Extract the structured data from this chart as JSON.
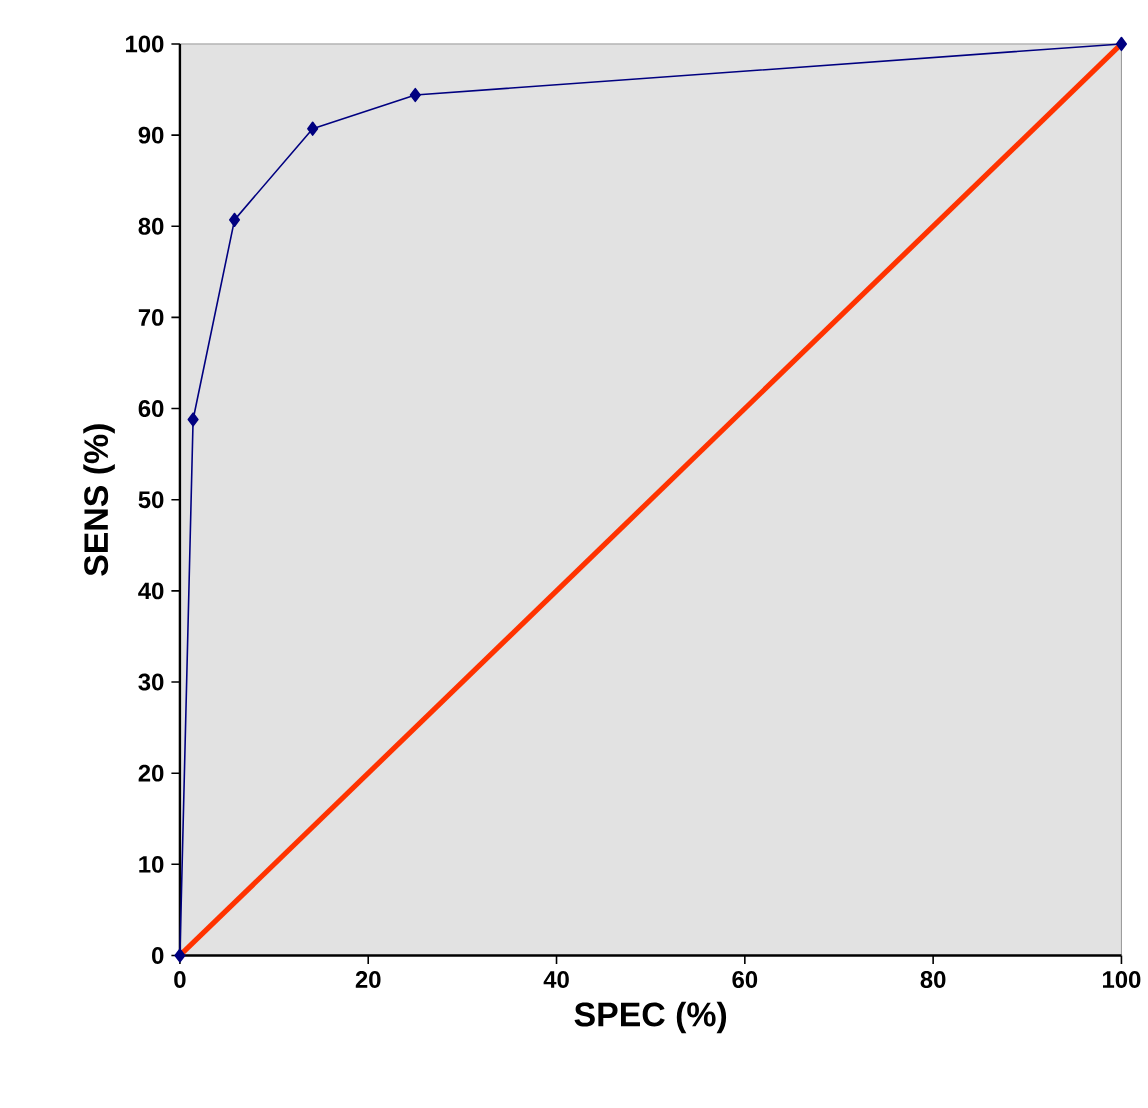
{
  "chart_data": {
    "type": "line",
    "xlabel": "SPEC (%)",
    "ylabel": "SENS (%)",
    "xlim": [
      0,
      100
    ],
    "ylim": [
      0,
      100
    ],
    "xticks": [
      0,
      20,
      40,
      60,
      80,
      100
    ],
    "yticks": [
      0,
      10,
      20,
      30,
      40,
      50,
      60,
      70,
      80,
      90,
      100
    ],
    "grid": false,
    "series": [
      {
        "color": "#000080",
        "marker": "diamond",
        "x": [
          0,
          1.4,
          5.8,
          14.1,
          25,
          100
        ],
        "values": [
          0,
          58.8,
          80.7,
          90.7,
          94.4,
          100
        ]
      },
      {
        "color": "#ff3300",
        "marker": "none",
        "x": [
          0,
          100
        ],
        "values": [
          0,
          100
        ]
      }
    ]
  }
}
